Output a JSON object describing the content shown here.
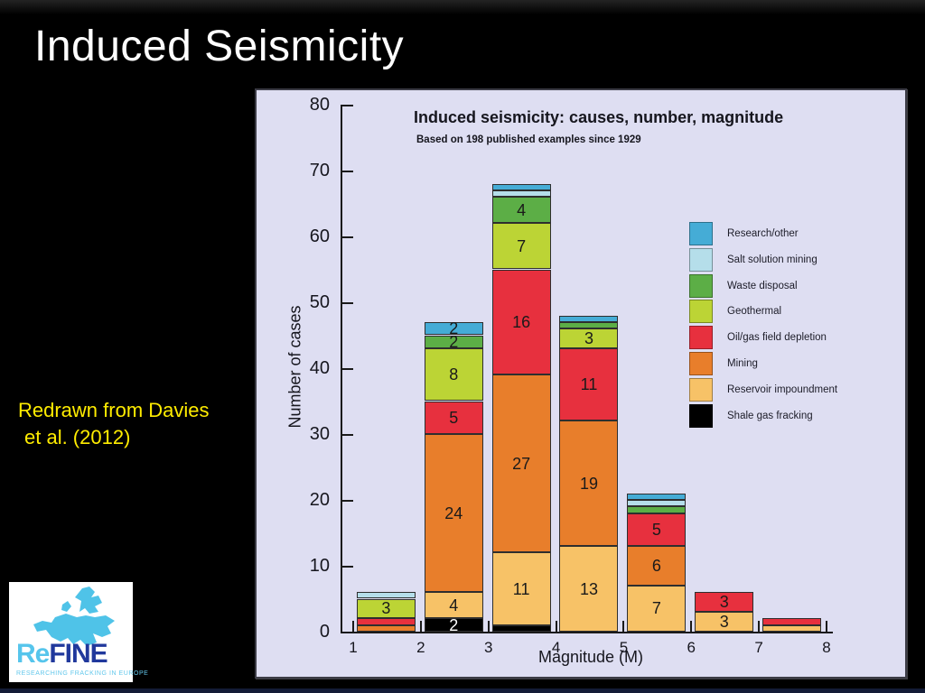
{
  "slide": {
    "title": "Induced Seismicity",
    "citation_line1": "Redrawn from Davies",
    "citation_line2": "et al. (2012)"
  },
  "logo": {
    "name_part1": "Re",
    "name_part2": "FINE",
    "tagline": "RESEARCHING FRACKING IN EUROPE",
    "map_color": "#4fc3e8"
  },
  "chart_data": {
    "type": "bar",
    "stacked": true,
    "title": "Induced seismicity: causes, number, magnitude",
    "subtitle": "Based on 198 published examples since 1929",
    "xlabel": "Magnitude (M)",
    "ylabel": "Number of cases",
    "ylim": [
      0,
      80
    ],
    "yticks": [
      0,
      10,
      20,
      30,
      40,
      50,
      60,
      70,
      80
    ],
    "xticks": [
      1,
      2,
      3,
      4,
      5,
      6,
      7,
      8
    ],
    "grid": false,
    "legend_position": "upper right",
    "panel_background": "#dedef2",
    "legend": [
      {
        "key": "research",
        "label": "Research/other",
        "color": "#45acd6"
      },
      {
        "key": "salt",
        "label": "Salt solution mining",
        "color": "#b5deea"
      },
      {
        "key": "waste",
        "label": "Waste disposal",
        "color": "#5cae46"
      },
      {
        "key": "geothermal",
        "label": "Geothermal",
        "color": "#bcd435"
      },
      {
        "key": "oilgas",
        "label": "Oil/gas field depletion",
        "color": "#e7303e"
      },
      {
        "key": "mining",
        "label": "Mining",
        "color": "#e87e2b"
      },
      {
        "key": "reservoir",
        "label": "Reservoir impoundment",
        "color": "#f7c267"
      },
      {
        "key": "shale",
        "label": "Shale gas fracking",
        "color": "#000000"
      }
    ],
    "bars": [
      {
        "magnitude_bin": "1-2",
        "center": 1.5,
        "total": 6,
        "segments": [
          {
            "cause": "mining",
            "value": 1
          },
          {
            "cause": "oilgas",
            "value": 1
          },
          {
            "cause": "geothermal",
            "value": 3
          },
          {
            "cause": "salt",
            "value": 1
          }
        ]
      },
      {
        "magnitude_bin": "2-3",
        "center": 2.5,
        "total": 47,
        "segments": [
          {
            "cause": "shale",
            "value": 2
          },
          {
            "cause": "reservoir",
            "value": 4
          },
          {
            "cause": "mining",
            "value": 24
          },
          {
            "cause": "oilgas",
            "value": 5
          },
          {
            "cause": "geothermal",
            "value": 8
          },
          {
            "cause": "waste",
            "value": 2
          },
          {
            "cause": "research",
            "value": 2
          }
        ]
      },
      {
        "magnitude_bin": "3-4",
        "center": 3.5,
        "total": 68,
        "segments": [
          {
            "cause": "shale",
            "value": 1
          },
          {
            "cause": "reservoir",
            "value": 11
          },
          {
            "cause": "mining",
            "value": 27
          },
          {
            "cause": "oilgas",
            "value": 16
          },
          {
            "cause": "geothermal",
            "value": 7
          },
          {
            "cause": "waste",
            "value": 4
          },
          {
            "cause": "salt",
            "value": 1
          },
          {
            "cause": "research",
            "value": 1
          }
        ]
      },
      {
        "magnitude_bin": "4-5",
        "center": 4.5,
        "total": 48,
        "segments": [
          {
            "cause": "reservoir",
            "value": 13
          },
          {
            "cause": "mining",
            "value": 19
          },
          {
            "cause": "oilgas",
            "value": 11
          },
          {
            "cause": "geothermal",
            "value": 3
          },
          {
            "cause": "waste",
            "value": 1
          },
          {
            "cause": "research",
            "value": 1
          }
        ]
      },
      {
        "magnitude_bin": "5-6",
        "center": 5.5,
        "total": 21,
        "segments": [
          {
            "cause": "reservoir",
            "value": 7
          },
          {
            "cause": "mining",
            "value": 6
          },
          {
            "cause": "oilgas",
            "value": 5
          },
          {
            "cause": "waste",
            "value": 1
          },
          {
            "cause": "salt",
            "value": 1
          },
          {
            "cause": "research",
            "value": 1
          }
        ]
      },
      {
        "magnitude_bin": "6-7",
        "center": 6.5,
        "total": 6,
        "segments": [
          {
            "cause": "reservoir",
            "value": 3
          },
          {
            "cause": "oilgas",
            "value": 3
          }
        ]
      },
      {
        "magnitude_bin": "7-8",
        "center": 7.5,
        "total": 2,
        "segments": [
          {
            "cause": "reservoir",
            "value": 1
          },
          {
            "cause": "oilgas",
            "value": 1
          }
        ]
      }
    ]
  }
}
